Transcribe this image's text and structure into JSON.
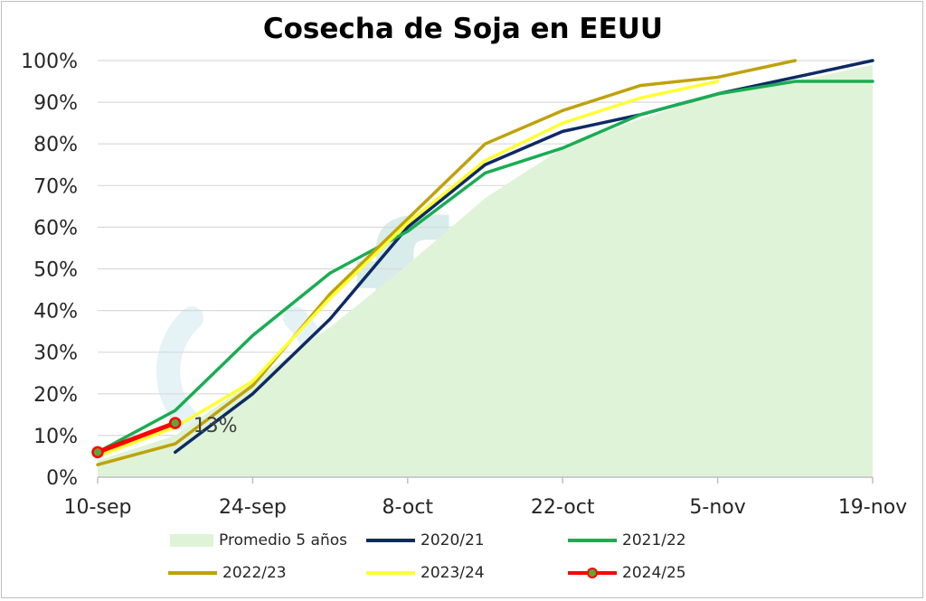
{
  "chart_data": {
    "type": "line",
    "title": "Cosecha de Soja en EEUU",
    "xlabel": "",
    "ylabel": "",
    "x_tick_labels": [
      "10-sep",
      "24-sep",
      "8-oct",
      "22-oct",
      "5-nov",
      "19-nov"
    ],
    "y_tick_labels": [
      "0%",
      "10%",
      "20%",
      "30%",
      "40%",
      "50%",
      "60%",
      "70%",
      "80%",
      "90%",
      "100%"
    ],
    "ylim": [
      0,
      100
    ],
    "x_weeks": [
      "10-sep",
      "17-sep",
      "24-sep",
      "1-oct",
      "8-oct",
      "15-oct",
      "22-oct",
      "29-oct",
      "5-nov",
      "12-nov",
      "19-nov"
    ],
    "grid": true,
    "legend_position": "bottom",
    "series": [
      {
        "name": "Promedio 5 años",
        "kind": "area",
        "color": "#dff3d8",
        "values": [
          4,
          10,
          23,
          36,
          51,
          67,
          79,
          86,
          92,
          95,
          99
        ]
      },
      {
        "name": "2020/21",
        "kind": "line",
        "color": "#0d2a63",
        "values": [
          null,
          6,
          20,
          38,
          60,
          75,
          83,
          87,
          92,
          96,
          100
        ]
      },
      {
        "name": "2021/22",
        "kind": "line",
        "color": "#19ad52",
        "values": [
          6,
          16,
          34,
          49,
          59,
          73,
          79,
          87,
          92,
          95,
          95
        ]
      },
      {
        "name": "2022/23",
        "kind": "line",
        "color": "#bfa20a",
        "values": [
          3,
          8,
          22,
          44,
          62,
          80,
          88,
          94,
          96,
          100,
          null
        ]
      },
      {
        "name": "2023/24",
        "kind": "line",
        "color": "#ffff33",
        "values": [
          5,
          12,
          23,
          43,
          61,
          76,
          85,
          91,
          95,
          null,
          null
        ]
      },
      {
        "name": "2024/25",
        "kind": "line-marker",
        "color": "#ff0000",
        "marker_color": "#5ea63a",
        "values": [
          6,
          13,
          null,
          null,
          null,
          null,
          null,
          null,
          null,
          null,
          null
        ]
      }
    ],
    "annotations": [
      {
        "series": "2024/25",
        "week": "17-sep",
        "text": "13%"
      }
    ],
    "watermark": "fyo"
  }
}
